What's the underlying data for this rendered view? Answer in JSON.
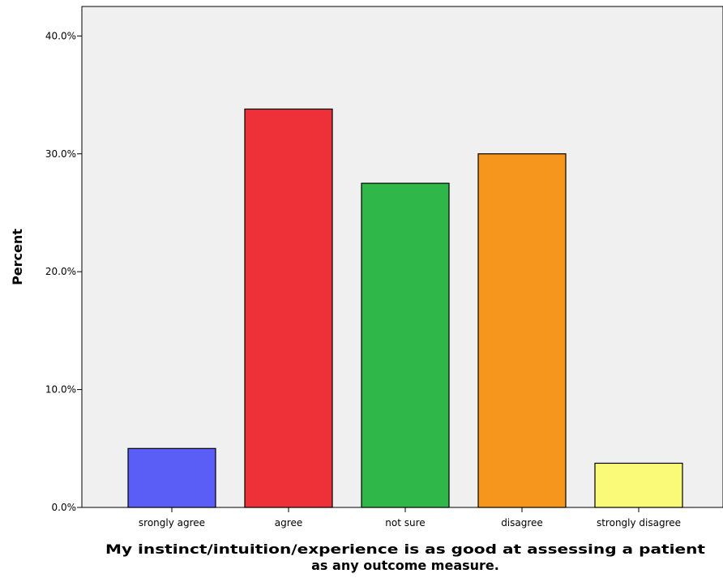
{
  "chart_data": {
    "type": "bar",
    "categories": [
      "srongly agree",
      "agree",
      "not sure",
      "disagree",
      "strongly disagree"
    ],
    "values": [
      5.0,
      33.8,
      27.5,
      30.0,
      3.75
    ],
    "colors": [
      "#5a5ef7",
      "#ee3039",
      "#2fb74a",
      "#f7961c",
      "#fafa78"
    ],
    "xlabel_lines": [
      "My instinct/intuition/experience is as good at assessing a patient",
      "as any outcome measure."
    ],
    "ylabel": "Percent",
    "ylim": [
      0,
      42.5
    ],
    "yticks": [
      0,
      10,
      20,
      30,
      40
    ],
    "ytick_labels": [
      "0.0%",
      "10.0%",
      "20.0%",
      "30.0%",
      "40.0%"
    ],
    "grid": false,
    "background": "#f0f0f0",
    "bar_edge_color": "#000000"
  }
}
